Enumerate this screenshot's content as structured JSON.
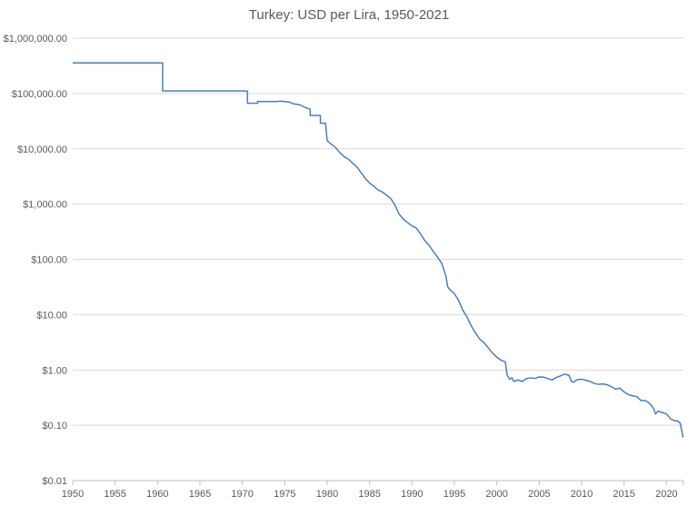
{
  "chart_data": {
    "type": "line",
    "title": "Turkey: USD per Lira, 1950-2021",
    "xlabel": "",
    "ylabel": "",
    "y_scale": "log",
    "ylim": [
      0.01,
      1000000
    ],
    "xlim": [
      1950,
      2022
    ],
    "grid": "horizontal",
    "legend": "none",
    "y_ticks": [
      {
        "value": 1000000,
        "label": "$1,000,000.00"
      },
      {
        "value": 100000,
        "label": "$100,000.00"
      },
      {
        "value": 10000,
        "label": "$10,000.00"
      },
      {
        "value": 1000,
        "label": "$1,000.00"
      },
      {
        "value": 100,
        "label": "$100.00"
      },
      {
        "value": 10,
        "label": "$10.00"
      },
      {
        "value": 1,
        "label": "$1.00"
      },
      {
        "value": 0.1,
        "label": "$0.10"
      },
      {
        "value": 0.01,
        "label": "$0.01"
      }
    ],
    "x_ticks": [
      {
        "value": 1950,
        "label": "1950"
      },
      {
        "value": 1955,
        "label": "1955"
      },
      {
        "value": 1960,
        "label": "1960"
      },
      {
        "value": 1965,
        "label": "1965"
      },
      {
        "value": 1970,
        "label": "1970"
      },
      {
        "value": 1975,
        "label": "1975"
      },
      {
        "value": 1980,
        "label": "1980"
      },
      {
        "value": 1985,
        "label": "1985"
      },
      {
        "value": 1990,
        "label": "1990"
      },
      {
        "value": 1995,
        "label": "1995"
      },
      {
        "value": 2000,
        "label": "2000"
      },
      {
        "value": 2005,
        "label": "2005"
      },
      {
        "value": 2010,
        "label": "2010"
      },
      {
        "value": 2015,
        "label": "2015"
      },
      {
        "value": 2020,
        "label": "2020"
      }
    ],
    "series": [
      {
        "color": "#4a7ebb",
        "points": [
          [
            1950.0,
            357000
          ],
          [
            1960.6,
            357000
          ],
          [
            1960.6,
            111000
          ],
          [
            1970.6,
            111000
          ],
          [
            1970.6,
            66700
          ],
          [
            1971.8,
            66700
          ],
          [
            1971.8,
            71400
          ],
          [
            1974.0,
            71400
          ],
          [
            1974.5,
            72500
          ],
          [
            1975.5,
            70000
          ],
          [
            1976.0,
            65000
          ],
          [
            1976.8,
            62000
          ],
          [
            1977.5,
            55000
          ],
          [
            1978.0,
            52000
          ],
          [
            1978.0,
            40000
          ],
          [
            1979.2,
            40000
          ],
          [
            1979.2,
            29000
          ],
          [
            1979.8,
            29000
          ],
          [
            1980.0,
            14000
          ],
          [
            1980.5,
            12000
          ],
          [
            1981.0,
            10500
          ],
          [
            1981.5,
            8500
          ],
          [
            1982.0,
            7200
          ],
          [
            1982.5,
            6500
          ],
          [
            1983.0,
            5500
          ],
          [
            1983.5,
            4700
          ],
          [
            1984.0,
            3700
          ],
          [
            1984.5,
            2900
          ],
          [
            1985.0,
            2400
          ],
          [
            1985.5,
            2100
          ],
          [
            1986.0,
            1800
          ],
          [
            1986.5,
            1650
          ],
          [
            1987.0,
            1450
          ],
          [
            1987.5,
            1250
          ],
          [
            1988.0,
            950
          ],
          [
            1988.5,
            650
          ],
          [
            1989.0,
            530
          ],
          [
            1989.5,
            460
          ],
          [
            1990.0,
            400
          ],
          [
            1990.5,
            370
          ],
          [
            1991.0,
            290
          ],
          [
            1991.5,
            220
          ],
          [
            1992.0,
            180
          ],
          [
            1992.5,
            140
          ],
          [
            1993.0,
            110
          ],
          [
            1993.5,
            85
          ],
          [
            1994.0,
            50
          ],
          [
            1994.2,
            32
          ],
          [
            1994.5,
            28
          ],
          [
            1995.0,
            24
          ],
          [
            1995.5,
            18
          ],
          [
            1996.0,
            12
          ],
          [
            1996.5,
            9
          ],
          [
            1997.0,
            6.2
          ],
          [
            1997.5,
            4.6
          ],
          [
            1998.0,
            3.6
          ],
          [
            1998.5,
            3.1
          ],
          [
            1999.0,
            2.5
          ],
          [
            1999.5,
            2.0
          ],
          [
            2000.0,
            1.7
          ],
          [
            2000.5,
            1.5
          ],
          [
            2001.0,
            1.4
          ],
          [
            2001.2,
            0.82
          ],
          [
            2001.5,
            0.68
          ],
          [
            2001.8,
            0.72
          ],
          [
            2002.0,
            0.62
          ],
          [
            2002.5,
            0.66
          ],
          [
            2003.0,
            0.62
          ],
          [
            2003.5,
            0.7
          ],
          [
            2004.0,
            0.72
          ],
          [
            2004.5,
            0.7
          ],
          [
            2005.0,
            0.75
          ],
          [
            2005.5,
            0.74
          ],
          [
            2006.0,
            0.7
          ],
          [
            2006.5,
            0.66
          ],
          [
            2007.0,
            0.73
          ],
          [
            2007.5,
            0.78
          ],
          [
            2008.0,
            0.84
          ],
          [
            2008.5,
            0.8
          ],
          [
            2008.8,
            0.62
          ],
          [
            2009.0,
            0.6
          ],
          [
            2009.5,
            0.67
          ],
          [
            2010.0,
            0.68
          ],
          [
            2010.5,
            0.65
          ],
          [
            2011.0,
            0.62
          ],
          [
            2011.5,
            0.57
          ],
          [
            2012.0,
            0.55
          ],
          [
            2012.5,
            0.56
          ],
          [
            2013.0,
            0.54
          ],
          [
            2013.5,
            0.5
          ],
          [
            2014.0,
            0.45
          ],
          [
            2014.5,
            0.47
          ],
          [
            2015.0,
            0.4
          ],
          [
            2015.5,
            0.36
          ],
          [
            2016.0,
            0.34
          ],
          [
            2016.5,
            0.33
          ],
          [
            2017.0,
            0.28
          ],
          [
            2017.5,
            0.28
          ],
          [
            2018.0,
            0.25
          ],
          [
            2018.5,
            0.2
          ],
          [
            2018.7,
            0.16
          ],
          [
            2019.0,
            0.18
          ],
          [
            2019.5,
            0.17
          ],
          [
            2020.0,
            0.16
          ],
          [
            2020.5,
            0.13
          ],
          [
            2021.0,
            0.12
          ],
          [
            2021.3,
            0.12
          ],
          [
            2021.6,
            0.11
          ],
          [
            2021.8,
            0.08
          ],
          [
            2021.95,
            0.06
          ]
        ]
      }
    ]
  }
}
